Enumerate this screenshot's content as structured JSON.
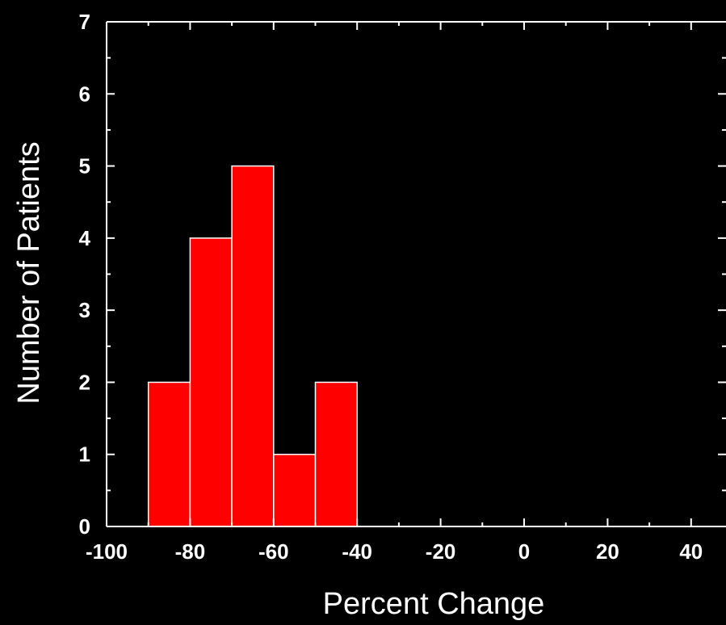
{
  "chart_data": {
    "type": "bar",
    "title": "",
    "xlabel": "Percent Change",
    "ylabel": "Number of Patients",
    "xlim": [
      -100,
      48
    ],
    "ylim": [
      0,
      7
    ],
    "x_ticks": [
      -100,
      -80,
      -60,
      -40,
      -20,
      0,
      20,
      40
    ],
    "x_tick_labels": [
      "-100",
      "-80",
      "-60",
      "-40",
      "-20",
      "0",
      "20",
      "40"
    ],
    "y_ticks": [
      0,
      1,
      2,
      3,
      4,
      5,
      6,
      7
    ],
    "y_tick_labels": [
      "0",
      "1",
      "2",
      "3",
      "4",
      "5",
      "6",
      "7"
    ],
    "bins": [
      {
        "start": -90,
        "end": -80,
        "count": 2
      },
      {
        "start": -80,
        "end": -70,
        "count": 4
      },
      {
        "start": -70,
        "end": -60,
        "count": 5
      },
      {
        "start": -60,
        "end": -50,
        "count": 1
      },
      {
        "start": -50,
        "end": -40,
        "count": 2
      }
    ],
    "bar_color": "#ff0000",
    "background_color": "#000000",
    "axis_color": "#ffffff",
    "grid": false,
    "legend": "none"
  }
}
